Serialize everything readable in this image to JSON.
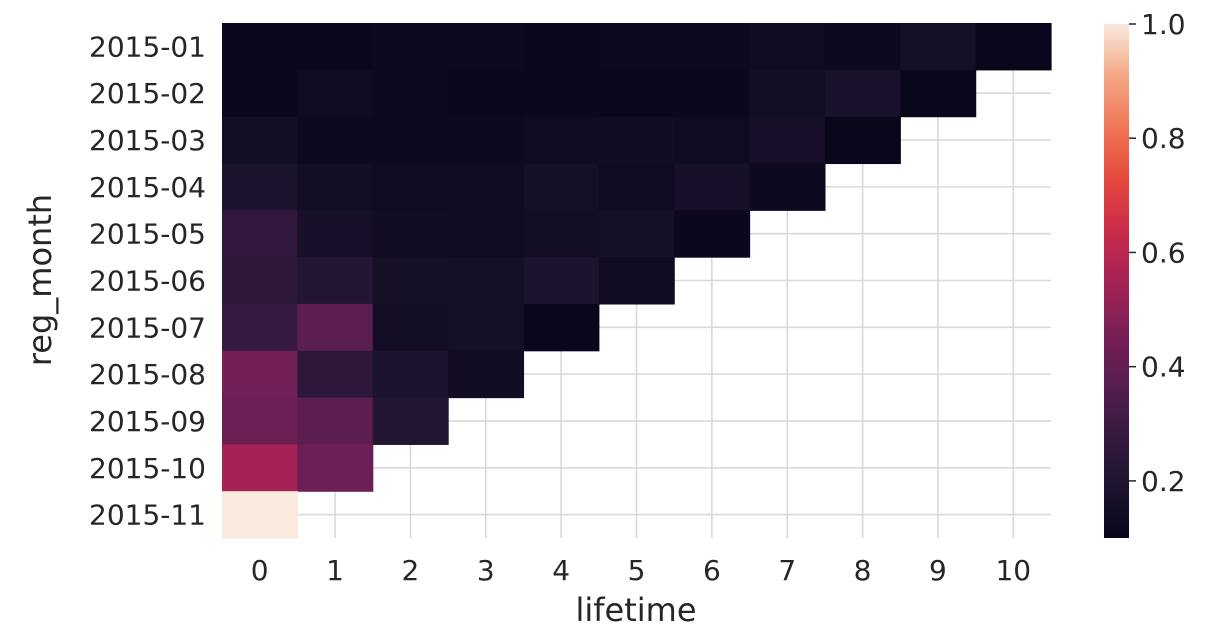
{
  "chart_data": {
    "type": "heatmap",
    "xlabel": "lifetime",
    "ylabel": "reg_month",
    "x_categories": [
      "0",
      "1",
      "2",
      "3",
      "4",
      "5",
      "6",
      "7",
      "8",
      "9",
      "10"
    ],
    "y_categories": [
      "2015-01",
      "2015-02",
      "2015-03",
      "2015-04",
      "2015-05",
      "2015-06",
      "2015-07",
      "2015-08",
      "2015-09",
      "2015-10",
      "2015-11"
    ],
    "values": [
      [
        0.11,
        0.11,
        0.12,
        0.12,
        0.11,
        0.12,
        0.12,
        0.13,
        0.12,
        0.16,
        0.1
      ],
      [
        0.11,
        0.13,
        0.12,
        0.11,
        0.11,
        0.11,
        0.11,
        0.15,
        0.18,
        0.1,
        null
      ],
      [
        0.15,
        0.12,
        0.12,
        0.12,
        0.13,
        0.14,
        0.13,
        0.17,
        0.1,
        null,
        null
      ],
      [
        0.19,
        0.15,
        0.13,
        0.13,
        0.16,
        0.13,
        0.17,
        0.12,
        null,
        null,
        null
      ],
      [
        0.26,
        0.17,
        0.14,
        0.13,
        0.15,
        0.16,
        0.11,
        null,
        null,
        null,
        null
      ],
      [
        0.25,
        0.22,
        0.16,
        0.16,
        0.19,
        0.13,
        null,
        null,
        null,
        null,
        null
      ],
      [
        0.28,
        0.38,
        0.15,
        0.16,
        0.1,
        null,
        null,
        null,
        null,
        null,
        null
      ],
      [
        0.44,
        0.24,
        0.19,
        0.14,
        null,
        null,
        null,
        null,
        null,
        null,
        null
      ],
      [
        0.42,
        0.38,
        0.21,
        null,
        null,
        null,
        null,
        null,
        null,
        null,
        null
      ],
      [
        0.55,
        0.42,
        null,
        null,
        null,
        null,
        null,
        null,
        null,
        null,
        null
      ],
      [
        1.0,
        null,
        null,
        null,
        null,
        null,
        null,
        null,
        null,
        null,
        null
      ]
    ],
    "vmin": 0.1,
    "vmax": 1.0,
    "colormap": "rocket",
    "colorbar_ticks": [
      "1.0",
      "0.8",
      "0.6",
      "0.4",
      "0.2"
    ],
    "colorbar_tick_values": [
      1.0,
      0.8,
      0.6,
      0.4,
      0.2
    ],
    "grid": true,
    "gridline_color": "#d9d9d9",
    "text_color": "#262626"
  }
}
